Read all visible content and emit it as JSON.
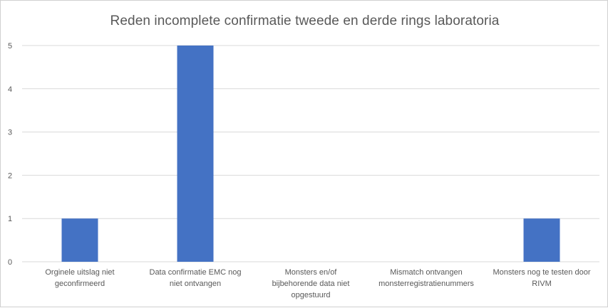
{
  "chart_data": {
    "type": "bar",
    "title": "Reden incomplete confirmatie tweede en derde rings laboratoria",
    "xlabel": "",
    "ylabel": "",
    "categories": [
      [
        "Orginele uitslag  niet",
        "geconfirmeerd"
      ],
      [
        "Data confirmatie EMC nog",
        "niet ontvangen"
      ],
      [
        "Monsters en/of",
        "bijbehorende data niet",
        "opgestuurd"
      ],
      [
        "Mismatch ontvangen",
        "monsterregistratienummers"
      ],
      [
        "Monsters nog te testen door",
        "RIVM"
      ]
    ],
    "values": [
      1,
      5,
      0,
      0,
      1
    ],
    "yticks": [
      0,
      1,
      2,
      3,
      4,
      5
    ],
    "ylim": [
      0,
      5
    ],
    "grid": true,
    "legend": "none",
    "colors": {
      "bar": "#4472c4",
      "grid": "#d9d9d9",
      "text": "#595959"
    }
  }
}
